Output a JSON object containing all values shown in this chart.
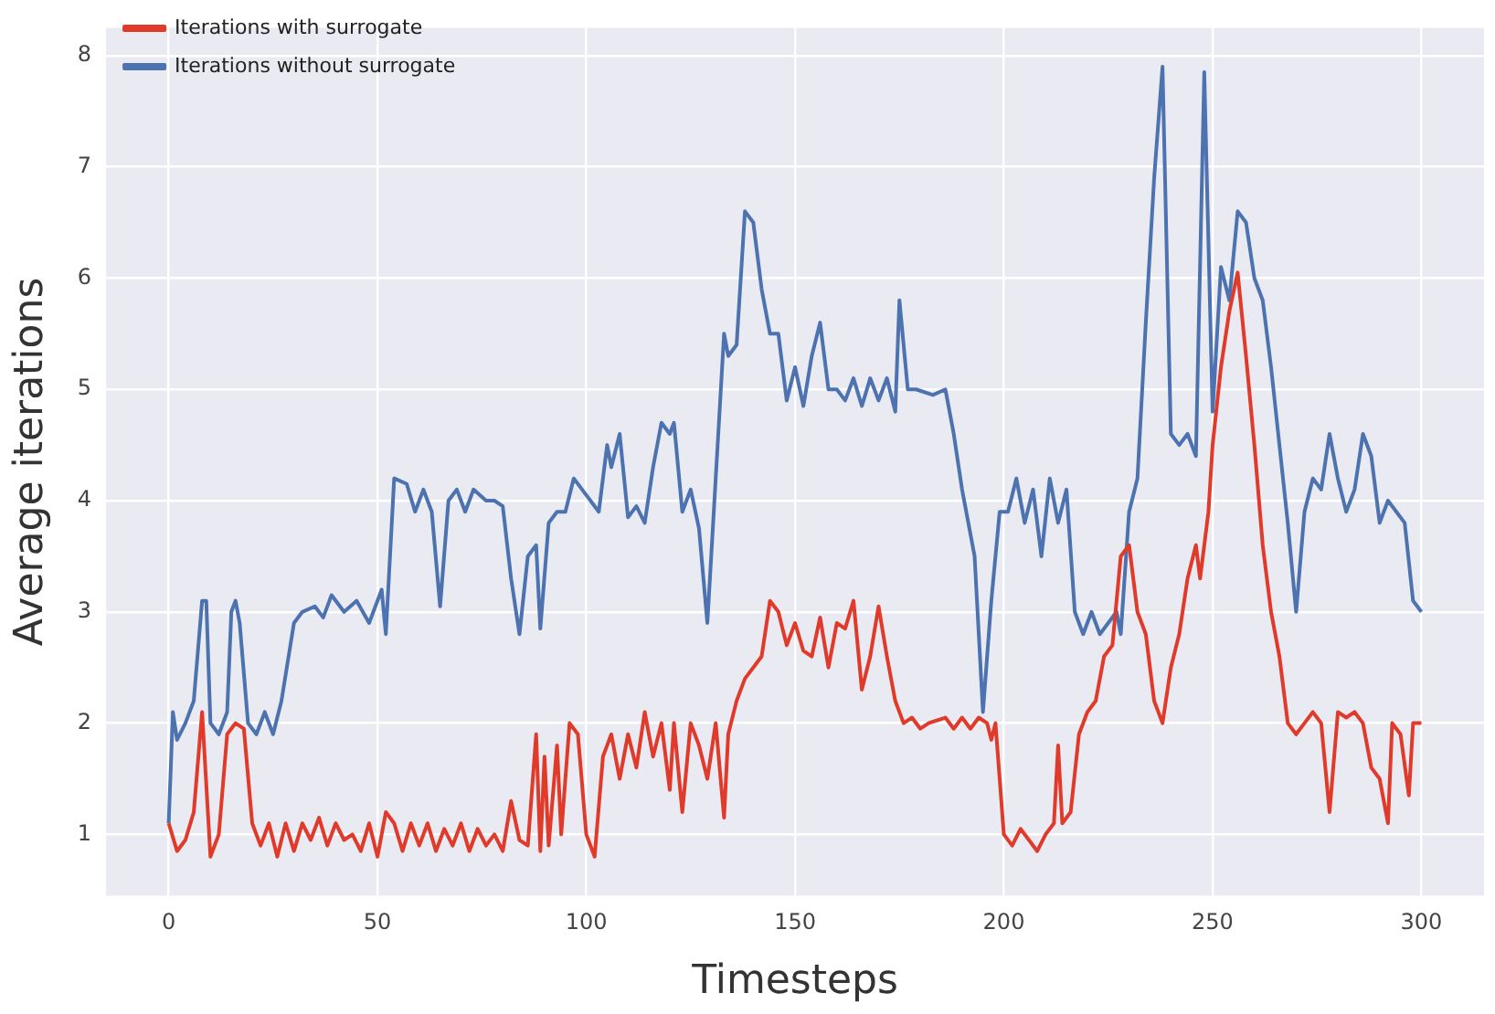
{
  "chart_data": {
    "type": "line",
    "xlabel": "Timesteps",
    "ylabel": "Average iterations",
    "xlim": [
      -15,
      315
    ],
    "ylim": [
      0.45,
      8.25
    ],
    "xticks": [
      0,
      50,
      100,
      150,
      200,
      250,
      300
    ],
    "yticks": [
      1,
      2,
      3,
      4,
      5,
      6,
      7,
      8
    ],
    "grid": true,
    "legend": "top left",
    "marker": "none",
    "line_style": "solid",
    "series": [
      {
        "name": "Iterations with surrogate",
        "color": "#e03a2a",
        "x": [
          0,
          2,
          4,
          6,
          8,
          10,
          12,
          14,
          16,
          18,
          20,
          22,
          24,
          26,
          28,
          30,
          32,
          34,
          36,
          38,
          40,
          42,
          44,
          46,
          48,
          50,
          52,
          54,
          56,
          58,
          60,
          62,
          64,
          66,
          68,
          70,
          72,
          74,
          76,
          78,
          80,
          82,
          84,
          86,
          88,
          89,
          90,
          91,
          93,
          94,
          96,
          98,
          100,
          102,
          104,
          106,
          108,
          110,
          112,
          114,
          116,
          118,
          120,
          121,
          123,
          125,
          127,
          129,
          131,
          133,
          134,
          136,
          138,
          140,
          142,
          144,
          146,
          148,
          150,
          152,
          154,
          156,
          158,
          160,
          162,
          164,
          166,
          168,
          170,
          172,
          174,
          176,
          178,
          180,
          182,
          186,
          188,
          190,
          192,
          194,
          196,
          197,
          198,
          200,
          202,
          204,
          206,
          208,
          210,
          212,
          213,
          214,
          216,
          218,
          220,
          222,
          224,
          226,
          228,
          230,
          232,
          234,
          236,
          238,
          240,
          242,
          244,
          246,
          247,
          249,
          250,
          252,
          254,
          256,
          258,
          260,
          262,
          264,
          266,
          268,
          270,
          272,
          274,
          276,
          278,
          280,
          282,
          284,
          286,
          288,
          290,
          292,
          293,
          295,
          297,
          298,
          300
        ],
        "values": [
          1.1,
          0.85,
          0.95,
          1.2,
          2.1,
          0.8,
          1.0,
          1.9,
          2.0,
          1.95,
          1.1,
          0.9,
          1.1,
          0.8,
          1.1,
          0.85,
          1.1,
          0.95,
          1.15,
          0.9,
          1.1,
          0.95,
          1.0,
          0.85,
          1.1,
          0.8,
          1.2,
          1.1,
          0.85,
          1.1,
          0.9,
          1.1,
          0.85,
          1.05,
          0.9,
          1.1,
          0.85,
          1.05,
          0.9,
          1.0,
          0.85,
          1.3,
          0.95,
          0.9,
          1.9,
          0.85,
          1.7,
          0.9,
          1.8,
          1.0,
          2.0,
          1.9,
          1.0,
          0.8,
          1.7,
          1.9,
          1.5,
          1.9,
          1.6,
          2.1,
          1.7,
          2.0,
          1.4,
          2.0,
          1.2,
          2.0,
          1.8,
          1.5,
          2.0,
          1.15,
          1.9,
          2.2,
          2.4,
          2.5,
          2.6,
          3.1,
          3.0,
          2.7,
          2.9,
          2.65,
          2.6,
          2.95,
          2.5,
          2.9,
          2.85,
          3.1,
          2.3,
          2.6,
          3.05,
          2.6,
          2.2,
          2.0,
          2.05,
          1.95,
          2.0,
          2.05,
          1.95,
          2.05,
          1.95,
          2.05,
          2.0,
          1.85,
          2.0,
          1.0,
          0.9,
          1.05,
          0.95,
          0.85,
          1.0,
          1.1,
          1.8,
          1.1,
          1.2,
          1.9,
          2.1,
          2.2,
          2.6,
          2.7,
          3.5,
          3.6,
          3.0,
          2.8,
          2.2,
          2.0,
          2.5,
          2.8,
          3.3,
          3.6,
          3.3,
          3.9,
          4.5,
          5.2,
          5.7,
          6.05,
          5.3,
          4.5,
          3.6,
          3.0,
          2.6,
          2.0,
          1.9,
          2.0,
          2.1,
          2.0,
          1.2,
          2.1,
          2.05,
          2.1,
          2.0,
          1.6,
          1.5,
          1.1,
          2.0,
          1.9,
          1.35,
          2.0,
          2.0
        ]
      },
      {
        "name": "Iterations without surrogate",
        "color": "#4c72b0",
        "x": [
          0,
          1,
          2,
          4,
          6,
          8,
          9,
          10,
          12,
          14,
          15,
          16,
          17,
          19,
          21,
          23,
          25,
          27,
          30,
          32,
          35,
          37,
          39,
          42,
          45,
          48,
          51,
          52,
          54,
          57,
          59,
          61,
          63,
          65,
          67,
          69,
          71,
          73,
          76,
          78,
          80,
          82,
          84,
          86,
          88,
          89,
          91,
          93,
          95,
          97,
          99,
          101,
          103,
          105,
          106,
          108,
          110,
          112,
          114,
          116,
          118,
          120,
          121,
          123,
          125,
          127,
          129,
          131,
          133,
          134,
          136,
          138,
          140,
          142,
          144,
          146,
          148,
          150,
          152,
          154,
          156,
          158,
          160,
          162,
          164,
          166,
          168,
          170,
          172,
          174,
          175,
          177,
          179,
          183,
          186,
          188,
          190,
          193,
          195,
          197,
          199,
          201,
          203,
          205,
          207,
          209,
          211,
          213,
          215,
          217,
          219,
          221,
          223,
          225,
          227,
          228,
          230,
          232,
          234,
          236,
          238,
          240,
          242,
          244,
          246,
          248,
          250,
          252,
          254,
          256,
          258,
          260,
          262,
          264,
          266,
          268,
          270,
          272,
          274,
          276,
          278,
          280,
          282,
          284,
          286,
          288,
          290,
          292,
          294,
          296,
          298,
          300
        ],
        "values": [
          1.1,
          2.1,
          1.85,
          2.0,
          2.2,
          3.1,
          3.1,
          2.0,
          1.9,
          2.1,
          3.0,
          3.1,
          2.9,
          2.0,
          1.9,
          2.1,
          1.9,
          2.2,
          2.9,
          3.0,
          3.05,
          2.95,
          3.15,
          3.0,
          3.1,
          2.9,
          3.2,
          2.8,
          4.2,
          4.15,
          3.9,
          4.1,
          3.9,
          3.05,
          4.0,
          4.1,
          3.9,
          4.1,
          4.0,
          4.0,
          3.95,
          3.3,
          2.8,
          3.5,
          3.6,
          2.85,
          3.8,
          3.9,
          3.9,
          4.2,
          4.1,
          4.0,
          3.9,
          4.5,
          4.3,
          4.6,
          3.85,
          3.95,
          3.8,
          4.3,
          4.7,
          4.6,
          4.7,
          3.9,
          4.1,
          3.75,
          2.9,
          4.2,
          5.5,
          5.3,
          5.4,
          6.6,
          6.5,
          5.9,
          5.5,
          5.5,
          4.9,
          5.2,
          4.85,
          5.3,
          5.6,
          5.0,
          5.0,
          4.9,
          5.1,
          4.85,
          5.1,
          4.9,
          5.1,
          4.8,
          5.8,
          5.0,
          5.0,
          4.95,
          5.0,
          4.6,
          4.1,
          3.5,
          2.1,
          3.1,
          3.9,
          3.9,
          4.2,
          3.8,
          4.1,
          3.5,
          4.2,
          3.8,
          4.1,
          3.0,
          2.8,
          3.0,
          2.8,
          2.9,
          3.0,
          2.8,
          3.9,
          4.2,
          5.6,
          6.9,
          7.9,
          4.6,
          4.5,
          4.6,
          4.4,
          7.85,
          4.8,
          6.1,
          5.8,
          6.6,
          6.5,
          6.0,
          5.8,
          5.2,
          4.5,
          3.8,
          3.0,
          3.9,
          4.2,
          4.1,
          4.6,
          4.2,
          3.9,
          4.1,
          4.6,
          4.4,
          3.8,
          4.0,
          3.9,
          3.8,
          3.1,
          3.0
        ]
      }
    ]
  }
}
